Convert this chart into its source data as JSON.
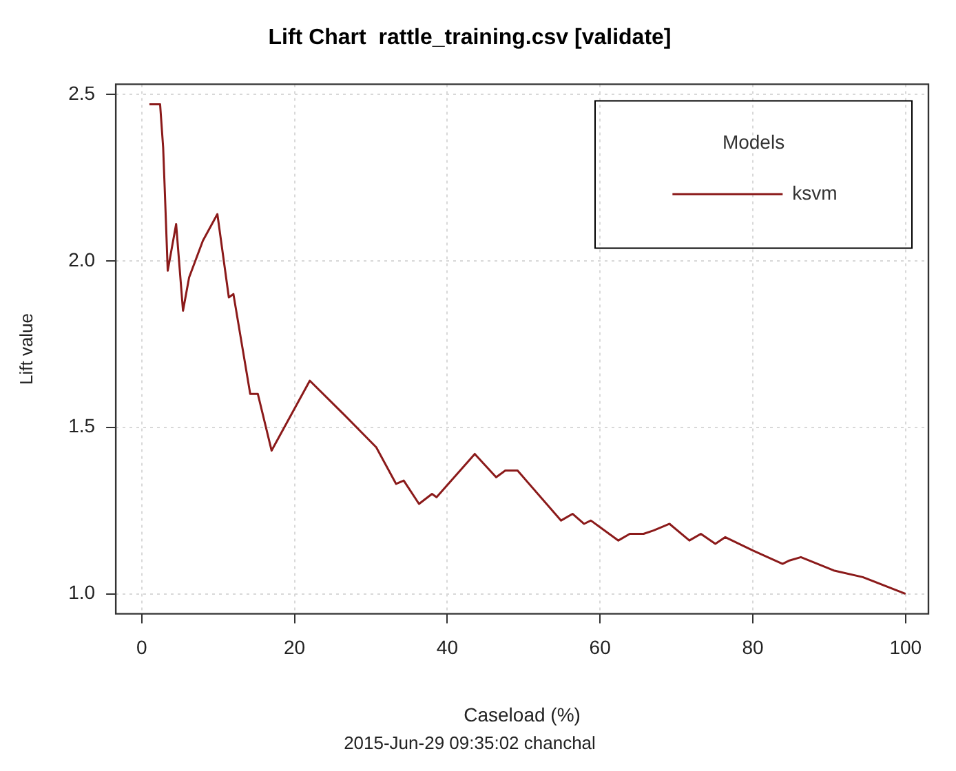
{
  "chart_data": {
    "type": "line",
    "title": "Lift Chart  rattle_training.csv [validate]",
    "xlabel": "Caseload (%)",
    "ylabel": "Lift value",
    "legend_title": "Models",
    "annotations": [
      "2015-Jun-29 09:35:02 chanchal"
    ],
    "series": [
      {
        "name": "ksvm",
        "color": "#8b1a1a",
        "x": [
          1,
          2.4,
          2.8,
          3,
          3.4,
          4.5,
          5.4,
          6.2,
          8,
          9.9,
          11.4,
          12,
          14.2,
          15.2,
          17,
          22,
          26.4,
          30.7,
          33.3,
          34.3,
          36.3,
          38,
          38.6,
          43.6,
          46.4,
          47.6,
          48.5,
          49.2,
          54.9,
          56.4,
          57.9,
          58.8,
          62.4,
          63.9,
          65.7,
          67,
          69.1,
          71.7,
          73.2,
          75.1,
          76.4,
          80,
          83.9,
          84.8,
          86.3,
          90.6,
          94.4,
          100
        ],
        "values": [
          2.47,
          2.47,
          2.34,
          2.22,
          1.97,
          2.11,
          1.85,
          1.95,
          2.06,
          2.14,
          1.89,
          1.9,
          1.6,
          1.6,
          1.43,
          1.64,
          1.54,
          1.44,
          1.33,
          1.34,
          1.27,
          1.3,
          1.29,
          1.42,
          1.35,
          1.37,
          1.37,
          1.37,
          1.22,
          1.24,
          1.21,
          1.22,
          1.16,
          1.18,
          1.18,
          1.19,
          1.21,
          1.16,
          1.18,
          1.15,
          1.17,
          1.13,
          1.09,
          1.1,
          1.11,
          1.07,
          1.05,
          1.0
        ]
      }
    ],
    "xlim": [
      -3.4,
      103
    ],
    "ylim": [
      0.94,
      2.53
    ],
    "xticks": [
      0,
      20,
      40,
      60,
      80,
      100
    ],
    "yticks": [
      {
        "value": 1,
        "label": "1.0"
      },
      1.5,
      {
        "value": 2,
        "label": "2.0"
      },
      2.5
    ],
    "grid": true,
    "legend": "top right",
    "marker": "none",
    "line_style": "solid"
  }
}
